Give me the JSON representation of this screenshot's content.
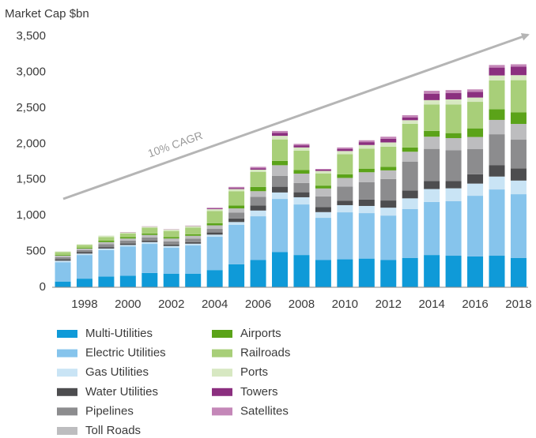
{
  "chart_data": {
    "type": "stacked_bar",
    "y_axis_label": "Market Cap $bn",
    "annotation": "10% CAGR",
    "categories": [
      null,
      "1998",
      null,
      "2000",
      null,
      "2002",
      null,
      "2004",
      null,
      "2006",
      null,
      "2008",
      null,
      "2010",
      null,
      "2012",
      null,
      "2014",
      null,
      "2016",
      null,
      "2018"
    ],
    "ylim": [
      0,
      3500
    ],
    "yticks": [
      0,
      500,
      {
        "value": 1000,
        "label": "1,000"
      },
      {
        "value": 1500,
        "label": "1,500"
      },
      {
        "value": 2000,
        "label": "2,000"
      },
      {
        "value": 2500,
        "label": "2,500"
      },
      {
        "value": 3000,
        "label": "3,000"
      },
      {
        "value": 3500,
        "label": "3,500"
      }
    ],
    "series": [
      {
        "name": "Multi-Utilities",
        "color": "#0f9ad8",
        "values": [
          80,
          120,
          150,
          160,
          200,
          190,
          190,
          240,
          320,
          380,
          490,
          450,
          380,
          390,
          400,
          380,
          410,
          450,
          440,
          430,
          440,
          410
        ]
      },
      {
        "name": "Electric Utilities",
        "color": "#86c4ec",
        "values": [
          270,
          330,
          370,
          410,
          405,
          360,
          393,
          464,
          550,
          610,
          742,
          705,
          588,
          655,
          634,
          620,
          680,
          740,
          760,
          846,
          924,
          888
        ]
      },
      {
        "name": "Gas Utilities",
        "color": "#c9e4f5",
        "values": [
          20,
          20,
          20,
          20,
          25,
          25,
          25,
          30,
          40,
          80,
          90,
          100,
          80,
          100,
          100,
          110,
          150,
          180,
          180,
          170,
          180,
          190
        ]
      },
      {
        "name": "Water Utilities",
        "color": "#4d4d4f",
        "values": [
          20,
          20,
          20,
          20,
          20,
          20,
          20,
          30,
          50,
          70,
          80,
          70,
          70,
          60,
          90,
          100,
          110,
          110,
          100,
          130,
          160,
          170
        ]
      },
      {
        "name": "Pipelines",
        "color": "#8c8c8e",
        "values": [
          30,
          30,
          40,
          40,
          45,
          45,
          50,
          50,
          80,
          120,
          150,
          130,
          150,
          200,
          240,
          300,
          400,
          450,
          430,
          350,
          430,
          400
        ]
      },
      {
        "name": "Toll Roads",
        "color": "#bdbdbf",
        "values": [
          20,
          20,
          30,
          30,
          35,
          40,
          40,
          50,
          60,
          80,
          150,
          130,
          110,
          120,
          140,
          120,
          140,
          170,
          170,
          170,
          200,
          220
        ]
      },
      {
        "name": "Airports",
        "color": "#5ba319",
        "values": [
          10,
          10,
          20,
          20,
          20,
          20,
          20,
          30,
          40,
          60,
          60,
          50,
          40,
          50,
          50,
          50,
          60,
          80,
          70,
          120,
          150,
          160
        ]
      },
      {
        "name": "Railroads",
        "color": "#a8cf79",
        "values": [
          40,
          40,
          50,
          50,
          80,
          85,
          95,
          170,
          200,
          210,
          300,
          270,
          170,
          280,
          280,
          280,
          330,
          370,
          400,
          370,
          400,
          450
        ]
      },
      {
        "name": "Ports",
        "color": "#d7e8c2",
        "values": [
          10,
          10,
          20,
          15,
          15,
          20,
          20,
          25,
          30,
          30,
          50,
          45,
          35,
          45,
          50,
          60,
          50,
          60,
          70,
          60,
          70,
          70
        ]
      },
      {
        "name": "Towers",
        "color": "#8b2f7f",
        "values": [
          0,
          0,
          0,
          0,
          0,
          0,
          0,
          10,
          15,
          20,
          40,
          30,
          17,
          30,
          40,
          50,
          40,
          90,
          90,
          80,
          110,
          120
        ]
      },
      {
        "name": "Satellites",
        "color": "#c487b8",
        "values": [
          0,
          0,
          0,
          5,
          5,
          5,
          7,
          11,
          15,
          20,
          28,
          20,
          10,
          20,
          26,
          30,
          30,
          40,
          40,
          34,
          36,
          32
        ]
      }
    ]
  }
}
